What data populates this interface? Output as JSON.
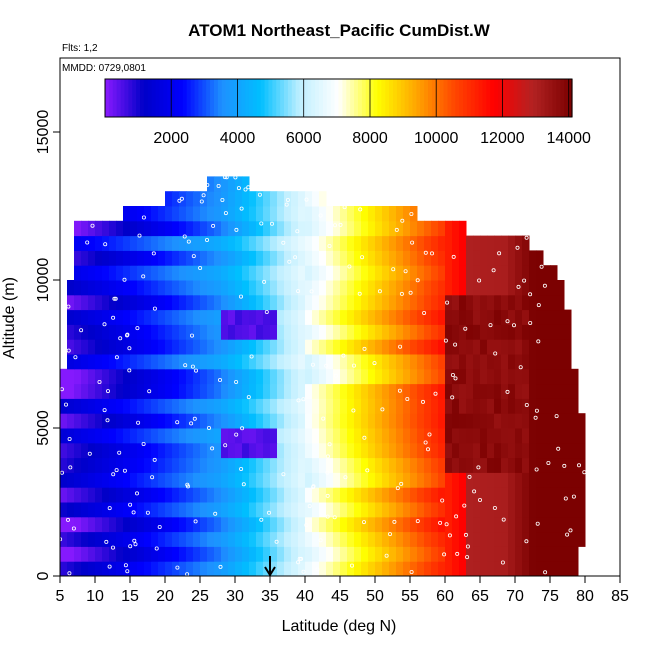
{
  "chart_data": {
    "type": "heatmap",
    "title": "ATOM1 Northeast_Pacific CumDist.W",
    "flights_label": "Flts: 1,2",
    "mmdd_label": "MMDD: 0729,0801",
    "xlabel": "Latitude (deg N)",
    "ylabel": "Altitude (m)",
    "xlim": [
      5,
      85
    ],
    "ylim": [
      0,
      17500
    ],
    "x_ticks": [
      "5",
      "10",
      "15",
      "20",
      "25",
      "30",
      "35",
      "40",
      "45",
      "50",
      "55",
      "60",
      "65",
      "70",
      "75",
      "80",
      "85"
    ],
    "y_ticks": [
      "0",
      "5000",
      "10000",
      "15000"
    ],
    "colorbar": {
      "range": [
        0,
        14100
      ],
      "ticks": [
        "2000",
        "4000",
        "6000",
        "8000",
        "10000",
        "12000",
        "14000"
      ],
      "colors": [
        "#8b1aff",
        "#0000c8",
        "#0000ff",
        "#1e90ff",
        "#00bfff",
        "#bfefff",
        "#ffffff",
        "#ffff00",
        "#ffa500",
        "#ff4500",
        "#ff0000",
        "#b22222",
        "#7a0000"
      ]
    },
    "marker": {
      "latitude": 35,
      "label": "arrow"
    },
    "altitude_bins": [
      {
        "alt": 0,
        "lat_min": 5,
        "lat_max": 79
      },
      {
        "alt": 500,
        "lat_min": 5,
        "lat_max": 79
      },
      {
        "alt": 1000,
        "lat_min": 5,
        "lat_max": 80
      },
      {
        "alt": 1500,
        "lat_min": 5,
        "lat_max": 80
      },
      {
        "alt": 2000,
        "lat_min": 5,
        "lat_max": 80
      },
      {
        "alt": 2500,
        "lat_min": 5,
        "lat_max": 80
      },
      {
        "alt": 3000,
        "lat_min": 5,
        "lat_max": 80
      },
      {
        "alt": 3500,
        "lat_min": 5,
        "lat_max": 80
      },
      {
        "alt": 4000,
        "lat_min": 5,
        "lat_max": 80
      },
      {
        "alt": 4500,
        "lat_min": 5,
        "lat_max": 80
      },
      {
        "alt": 5000,
        "lat_min": 5,
        "lat_max": 80
      },
      {
        "alt": 5500,
        "lat_min": 5,
        "lat_max": 79
      },
      {
        "alt": 6000,
        "lat_min": 5,
        "lat_max": 79
      },
      {
        "alt": 6500,
        "lat_min": 5,
        "lat_max": 79
      },
      {
        "alt": 7000,
        "lat_min": 6,
        "lat_max": 78
      },
      {
        "alt": 7500,
        "lat_min": 6,
        "lat_max": 78
      },
      {
        "alt": 8000,
        "lat_min": 6,
        "lat_max": 78
      },
      {
        "alt": 8500,
        "lat_min": 6,
        "lat_max": 78
      },
      {
        "alt": 9000,
        "lat_min": 6,
        "lat_max": 77
      },
      {
        "alt": 9500,
        "lat_min": 6,
        "lat_max": 77
      },
      {
        "alt": 10000,
        "lat_min": 7,
        "lat_max": 76
      },
      {
        "alt": 10500,
        "lat_min": 7,
        "lat_max": 74
      },
      {
        "alt": 11000,
        "lat_min": 7,
        "lat_max": 72
      },
      {
        "alt": 11500,
        "lat_min": 7,
        "lat_max": 63
      },
      {
        "alt": 12000,
        "lat_min": 14,
        "lat_max": 56
      },
      {
        "alt": 12500,
        "lat_min": 20,
        "lat_max": 43
      },
      {
        "alt": 13000,
        "lat_min": 26,
        "lat_max": 32
      }
    ]
  }
}
